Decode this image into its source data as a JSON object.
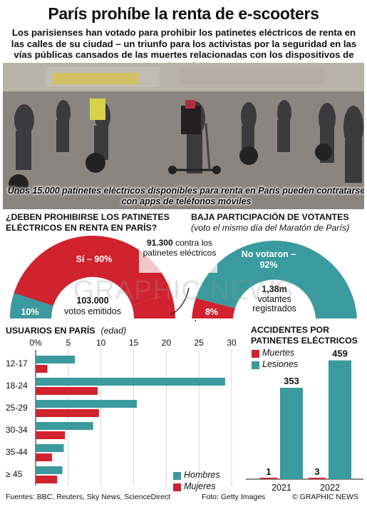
{
  "header": {
    "title": "París prohíbe la renta de e-scooters",
    "subtitle": "Los parisienses han votado para prohibir los patinetes eléctricos de renta en las calles de su ciudad – un triunfo para los activistas por la seguridad en las vías públicas cansados de las muertes relacionadas con los dispositivos de batería"
  },
  "photo": {
    "caption": "Unos 15.000 patinetes eléctricos disponibles para renta en París pueden contratarse con apps de teléfonos móviles"
  },
  "referendum": {
    "question": "¿DEBEN PROHIBIRSE LOS PATINETES ELÉCTRICOS EN RENTA EN PARÍS?",
    "yes_label": "Sí – 90%",
    "no_label": "10%",
    "total_votes": "103.000",
    "total_votes_label": "votos emitidos",
    "against_annotation_bold": "91.300",
    "against_annotation_rest": "contra los patinetes eléctricos"
  },
  "turnout": {
    "title": "BAJA PARTICIPACIÓN DE VOTANTES",
    "subtitle": "(voto el mismo día del Maratón de París)",
    "no_vote_label_1": "No votaron –",
    "no_vote_label_2": "92%",
    "vote_label": "8%",
    "registered": "1,38m",
    "registered_label_1": "votantes",
    "registered_label_2": "registrados"
  },
  "users": {
    "title": "USUARIOS EN PARÍS",
    "unit": "(edad)",
    "legend_men": "Hombres",
    "legend_women": "Mujeres"
  },
  "accidents": {
    "title": "ACCIDENTES POR PATINETES ELÉCTRICOS",
    "legend_deaths": "Muertes",
    "legend_injuries": "Lesiones"
  },
  "watermark": "GRAPHIC NEWS",
  "footer": {
    "sources": "Fuentes: BBC, Reuters, Sky News, ScienceDirect",
    "photo_credit": "Foto: Getty Images",
    "copyright": "© GRAPHIC NEWS"
  },
  "colors": {
    "red": "#d1222f",
    "teal": "#3a9a9d",
    "dark": "#222222"
  },
  "chart_data": [
    {
      "type": "pie",
      "title": "¿DEBEN PROHIBIRSE LOS PATINETES ELÉCTRICOS EN RENTA EN PARÍS?",
      "categories": [
        "Sí",
        "No"
      ],
      "values": [
        90,
        10
      ],
      "unit": "%"
    },
    {
      "type": "pie",
      "title": "BAJA PARTICIPACIÓN DE VOTANTES",
      "categories": [
        "No votaron",
        "Votaron"
      ],
      "values": [
        92,
        8
      ],
      "unit": "%"
    },
    {
      "type": "bar",
      "orientation": "horizontal",
      "title": "USUARIOS EN PARÍS",
      "categories": [
        "12-17",
        "18-24",
        "25-29",
        "30-34",
        "35-44",
        "≥ 45"
      ],
      "series": [
        {
          "name": "Hombres",
          "values": [
            6,
            29,
            15.5,
            8.8,
            4.3,
            4.1
          ]
        },
        {
          "name": "Mujeres",
          "values": [
            1.8,
            9.5,
            9.7,
            4.5,
            2.5,
            3.3
          ]
        }
      ],
      "xlim": [
        0,
        30
      ],
      "xticks": [
        "0%",
        "5",
        "10",
        "15",
        "20",
        "25",
        "30"
      ]
    },
    {
      "type": "bar",
      "title": "ACCIDENTES POR PATINETES ELÉCTRICOS",
      "categories": [
        "2021",
        "2022"
      ],
      "series": [
        {
          "name": "Muertes",
          "values": [
            1,
            3
          ]
        },
        {
          "name": "Lesiones",
          "values": [
            353,
            459
          ]
        }
      ],
      "ylim": [
        0,
        480
      ]
    }
  ]
}
